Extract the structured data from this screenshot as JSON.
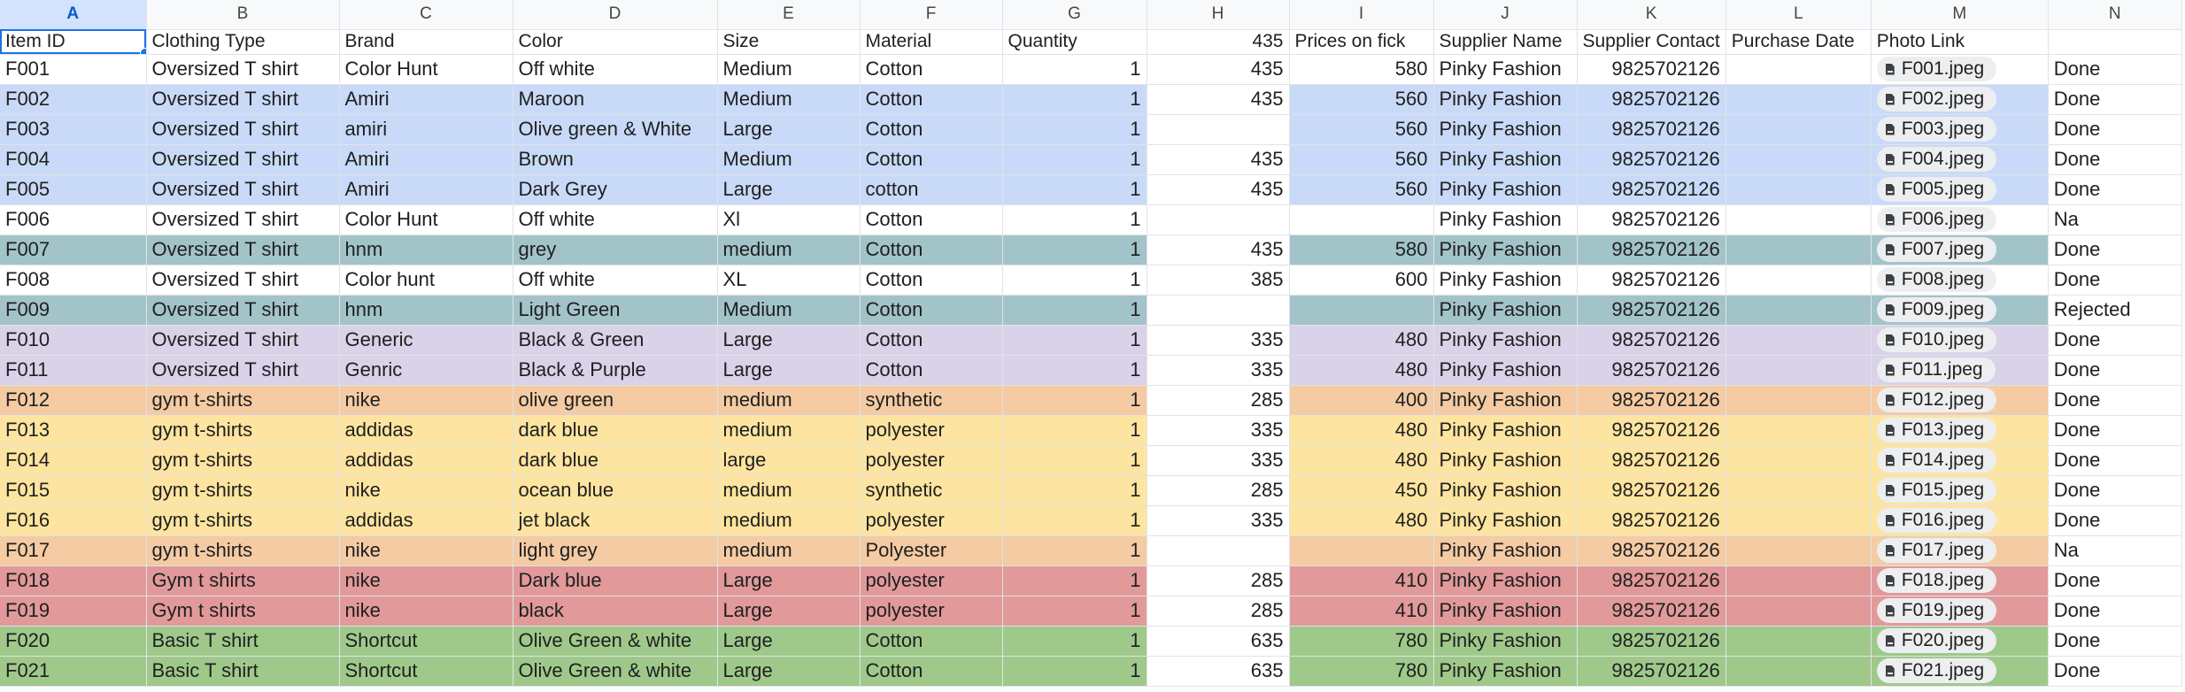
{
  "columns": [
    "A",
    "B",
    "C",
    "D",
    "E",
    "F",
    "G",
    "H",
    "I",
    "J",
    "K",
    "L",
    "M",
    "N"
  ],
  "header": [
    "Item ID",
    "Clothing Type",
    "Brand",
    "Color",
    "Size",
    "Material",
    "Quantity",
    "435",
    "Prices on fick",
    "Supplier Name",
    "Supplier Contact",
    "Purchase Date",
    "Photo Link",
    ""
  ],
  "rows": [
    {
      "color": "none",
      "cells": [
        "F001",
        "Oversized T shirt",
        "Color Hunt",
        "Off white",
        "Medium",
        "Cotton",
        "1",
        "435",
        "580",
        "Pinky Fashion",
        "9825702126",
        "",
        "F001.jpeg",
        "Done"
      ]
    },
    {
      "color": "blue",
      "cells": [
        "F002",
        "Oversized T shirt",
        "Amiri",
        "Maroon",
        "Medium",
        "Cotton",
        "1",
        "435",
        "560",
        "Pinky Fashion",
        "9825702126",
        "",
        "F002.jpeg",
        "Done"
      ]
    },
    {
      "color": "blue",
      "cells": [
        "F003",
        "Oversized T shirt",
        "amiri",
        "Olive green & White",
        "Large",
        "Cotton",
        "1",
        "",
        "560",
        "Pinky Fashion",
        "9825702126",
        "",
        "F003.jpeg",
        "Done"
      ]
    },
    {
      "color": "blue",
      "cells": [
        "F004",
        "Oversized T shirt",
        "Amiri",
        "Brown",
        "Medium",
        "Cotton",
        "1",
        "435",
        "560",
        "Pinky Fashion",
        "9825702126",
        "",
        "F004.jpeg",
        "Done"
      ]
    },
    {
      "color": "blue",
      "cells": [
        "F005",
        "Oversized T shirt",
        "Amiri",
        "Dark Grey",
        "Large",
        "cotton",
        "1",
        "435",
        "560",
        "Pinky Fashion",
        "9825702126",
        "",
        "F005.jpeg",
        "Done"
      ]
    },
    {
      "color": "none",
      "cells": [
        "F006",
        "Oversized T shirt",
        "Color Hunt",
        "Off white",
        "Xl",
        "Cotton",
        "1",
        "",
        "",
        "Pinky Fashion",
        "9825702126",
        "",
        "F006.jpeg",
        "Na"
      ]
    },
    {
      "color": "teal",
      "cells": [
        "F007",
        "Oversized T shirt",
        "hnm",
        "grey",
        "medium",
        "Cotton",
        "1",
        "435",
        "580",
        "Pinky Fashion",
        "9825702126",
        "",
        "F007.jpeg",
        "Done"
      ]
    },
    {
      "color": "none",
      "cells": [
        "F008",
        "Oversized T shirt",
        "Color hunt",
        "Off white",
        "XL",
        "Cotton",
        "1",
        "385",
        "600",
        "Pinky Fashion",
        "9825702126",
        "",
        "F008.jpeg",
        "Done"
      ]
    },
    {
      "color": "teal",
      "cells": [
        "F009",
        "Oversized T shirt",
        "hnm",
        "Light Green",
        "Medium",
        "Cotton",
        "1",
        "",
        "",
        "Pinky Fashion",
        "9825702126",
        "",
        "F009.jpeg",
        "Rejected"
      ]
    },
    {
      "color": "lav",
      "cells": [
        "F010",
        "Oversized T shirt",
        "Generic",
        "Black & Green",
        "Large",
        "Cotton",
        "1",
        "335",
        "480",
        "Pinky Fashion",
        "9825702126",
        "",
        "F010.jpeg",
        "Done"
      ]
    },
    {
      "color": "lav",
      "cells": [
        "F011",
        "Oversized T shirt",
        "Genric",
        "Black & Purple",
        "Large",
        "Cotton",
        "1",
        "335",
        "480",
        "Pinky Fashion",
        "9825702126",
        "",
        "F011.jpeg",
        "Done"
      ]
    },
    {
      "color": "peach",
      "cells": [
        "F012",
        "gym t-shirts",
        "nike",
        "olive green",
        "medium",
        "synthetic",
        "1",
        "285",
        "400",
        "Pinky Fashion",
        "9825702126",
        "",
        "F012.jpeg",
        "Done"
      ]
    },
    {
      "color": "yellow",
      "cells": [
        "F013",
        "gym t-shirts",
        "addidas",
        "dark blue",
        "medium",
        "polyester",
        "1",
        "335",
        "480",
        "Pinky Fashion",
        "9825702126",
        "",
        "F013.jpeg",
        "Done"
      ]
    },
    {
      "color": "yellow",
      "cells": [
        "F014",
        "gym t-shirts",
        "addidas",
        "dark blue",
        "large",
        "polyester",
        "1",
        "335",
        "480",
        "Pinky Fashion",
        "9825702126",
        "",
        "F014.jpeg",
        "Done"
      ]
    },
    {
      "color": "yellow",
      "cells": [
        "F015",
        "gym t-shirts",
        "nike",
        "ocean blue",
        "medium",
        "synthetic",
        "1",
        "285",
        "450",
        "Pinky Fashion",
        "9825702126",
        "",
        "F015.jpeg",
        "Done"
      ]
    },
    {
      "color": "yellow",
      "cells": [
        "F016",
        "gym t-shirts",
        "addidas",
        "jet black",
        "medium",
        "polyester",
        "1",
        "335",
        "480",
        "Pinky Fashion",
        "9825702126",
        "",
        "F016.jpeg",
        "Done"
      ]
    },
    {
      "color": "peach",
      "cells": [
        "F017",
        "gym t-shirts",
        "nike",
        "light grey",
        "medium",
        "Polyester",
        "1",
        "",
        "",
        "Pinky Fashion",
        "9825702126",
        "",
        "F017.jpeg",
        "Na"
      ]
    },
    {
      "color": "red",
      "cells": [
        "F018",
        "Gym t shirts",
        "nike",
        "Dark blue",
        "Large",
        "polyester",
        "1",
        "285",
        "410",
        "Pinky Fashion",
        "9825702126",
        "",
        "F018.jpeg",
        "Done"
      ]
    },
    {
      "color": "red",
      "cells": [
        "F019",
        "Gym t shirts",
        "nike",
        "black",
        "Large",
        "polyester",
        "1",
        "285",
        "410",
        "Pinky Fashion",
        "9825702126",
        "",
        "F019.jpeg",
        "Done"
      ]
    },
    {
      "color": "green",
      "cells": [
        "F020",
        "Basic T shirt",
        "Shortcut",
        "Olive Green & white",
        "Large",
        "Cotton",
        "1",
        "635",
        "780",
        "Pinky Fashion",
        "9825702126",
        "",
        "F020.jpeg",
        "Done"
      ]
    },
    {
      "color": "green",
      "cells": [
        "F021",
        "Basic T shirt",
        "Shortcut",
        "Olive Green & white",
        "Large",
        "Cotton",
        "1",
        "635",
        "780",
        "Pinky Fashion",
        "9825702126",
        "",
        "F021.jpeg",
        "Done"
      ]
    }
  ],
  "icons": {
    "photo_chip": "file-icon"
  },
  "colors": {
    "blue": "#c9daf8",
    "teal": "#a2c4c9",
    "lav": "#d9d2e9",
    "peach": "#f4cba3",
    "yellow": "#fde4a0",
    "red": "#e1999a",
    "green": "#9fc98b",
    "selection": "#1a73e8"
  }
}
